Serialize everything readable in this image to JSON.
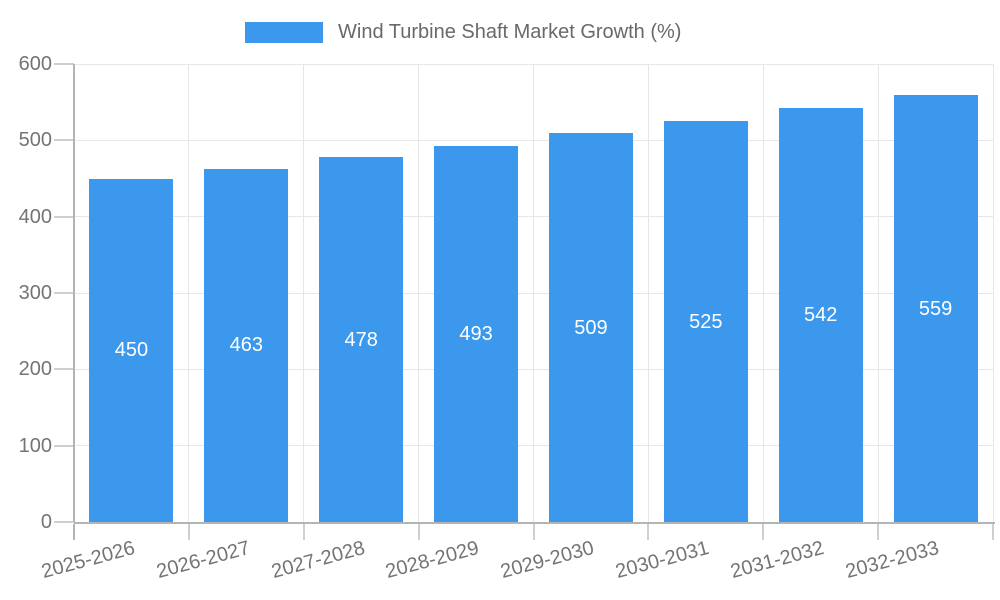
{
  "legend": {
    "label": "Wind Turbine Shaft Market Growth (%)"
  },
  "colors": {
    "bar": "#3B98EC",
    "grid": "#e7e7e7",
    "axis": "#b4b4b4",
    "tick": "#cfcfcf",
    "tick_label": "#747474",
    "legend_text": "#696969",
    "value_label": "#ffffff",
    "background": "#ffffff"
  },
  "chart_data": {
    "type": "bar",
    "categories": [
      "2025-2026",
      "2026-2027",
      "2027-2028",
      "2028-2029",
      "2029-2030",
      "2030-2031",
      "2031-2032",
      "2032-2033"
    ],
    "values": [
      450,
      463,
      478,
      493,
      509,
      525,
      542,
      559
    ],
    "series_name": "Wind Turbine Shaft Market Growth (%)",
    "title": "",
    "xlabel": "",
    "ylabel": "",
    "ylim": [
      0,
      600
    ],
    "yticks": [
      0,
      100,
      200,
      300,
      400,
      500,
      600
    ],
    "grid": true,
    "legend_position": "top-center",
    "value_label_position": "inside-center",
    "x_tick_rotation_deg": -15
  }
}
